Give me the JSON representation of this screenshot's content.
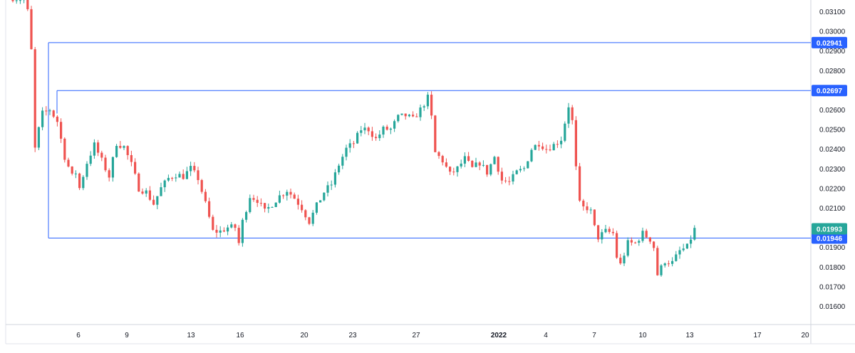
{
  "chart_data": {
    "type": "candlestick",
    "title": "",
    "xlabel": "",
    "ylabel": "",
    "ylim": [
      0.0153,
      0.0318
    ],
    "y_ticks": [
      "0.03100",
      "0.03000",
      "0.02900",
      "0.02800",
      "0.02600",
      "0.02500",
      "0.02400",
      "0.02300",
      "0.02200",
      "0.02100",
      "0.01900",
      "0.01800",
      "0.01700",
      "0.01600"
    ],
    "x_ticks": [
      "6",
      "9",
      "13",
      "16",
      "20",
      "23",
      "27",
      "2022",
      "4",
      "7",
      "10",
      "13",
      "17",
      "20"
    ],
    "grid": false,
    "colors": {
      "up": "#26a69a",
      "down": "#ef5350",
      "level_line": "#2962ff",
      "level_label_bg": "#2962ff",
      "last_price_bg": "#26a69a"
    },
    "horizontal_levels": [
      {
        "value": 0.02941,
        "label": "0.02941"
      },
      {
        "value": 0.02697,
        "label": "0.02697"
      },
      {
        "value": 0.01946,
        "label": "0.01946"
      }
    ],
    "last_price": {
      "value": 0.01993,
      "label": "0.01993"
    },
    "path": [
      [
        0,
        0.0317
      ],
      [
        3,
        0.0316
      ],
      [
        4,
        0.031
      ],
      [
        5,
        0.029
      ],
      [
        6,
        0.024
      ],
      [
        7,
        0.025
      ],
      [
        8,
        0.0258
      ],
      [
        10,
        0.026
      ],
      [
        12,
        0.0254
      ],
      [
        14,
        0.0236
      ],
      [
        16,
        0.0226
      ],
      [
        17,
        0.0228
      ],
      [
        18,
        0.022
      ],
      [
        20,
        0.0233
      ],
      [
        22,
        0.0242
      ],
      [
        24,
        0.0234
      ],
      [
        26,
        0.0226
      ],
      [
        28,
        0.0243
      ],
      [
        30,
        0.0241
      ],
      [
        32,
        0.0232
      ],
      [
        34,
        0.022
      ],
      [
        36,
        0.0218
      ],
      [
        38,
        0.0212
      ],
      [
        40,
        0.022
      ],
      [
        42,
        0.0225
      ],
      [
        44,
        0.0227
      ],
      [
        46,
        0.0226
      ],
      [
        48,
        0.023
      ],
      [
        50,
        0.0225
      ],
      [
        52,
        0.0212
      ],
      [
        54,
        0.0198
      ],
      [
        56,
        0.0198
      ],
      [
        58,
        0.02
      ],
      [
        60,
        0.02
      ],
      [
        61,
        0.0192
      ],
      [
        62,
        0.0203
      ],
      [
        64,
        0.0216
      ],
      [
        66,
        0.0214
      ],
      [
        68,
        0.0208
      ],
      [
        70,
        0.0212
      ],
      [
        72,
        0.0216
      ],
      [
        74,
        0.0219
      ],
      [
        76,
        0.0215
      ],
      [
        78,
        0.021
      ],
      [
        80,
        0.0203
      ],
      [
        82,
        0.0211
      ],
      [
        84,
        0.0218
      ],
      [
        86,
        0.0222
      ],
      [
        88,
        0.0232
      ],
      [
        90,
        0.024
      ],
      [
        92,
        0.0243
      ],
      [
        94,
        0.025
      ],
      [
        96,
        0.025
      ],
      [
        98,
        0.0245
      ],
      [
        100,
        0.025
      ],
      [
        102,
        0.025
      ],
      [
        104,
        0.0256
      ],
      [
        106,
        0.0257
      ],
      [
        108,
        0.0255
      ],
      [
        110,
        0.026
      ],
      [
        112,
        0.0266
      ],
      [
        113,
        0.0256
      ],
      [
        114,
        0.0238
      ],
      [
        116,
        0.0234
      ],
      [
        118,
        0.0227
      ],
      [
        120,
        0.023
      ],
      [
        122,
        0.0235
      ],
      [
        124,
        0.023
      ],
      [
        126,
        0.0233
      ],
      [
        128,
        0.0228
      ],
      [
        130,
        0.0236
      ],
      [
        132,
        0.0224
      ],
      [
        134,
        0.0223
      ],
      [
        136,
        0.0228
      ],
      [
        138,
        0.023
      ],
      [
        140,
        0.024
      ],
      [
        142,
        0.0243
      ],
      [
        144,
        0.024
      ],
      [
        146,
        0.0242
      ],
      [
        148,
        0.0245
      ],
      [
        150,
        0.0262
      ],
      [
        151,
        0.0254
      ],
      [
        152,
        0.023
      ],
      [
        153,
        0.0212
      ],
      [
        154,
        0.021
      ],
      [
        155,
        0.021
      ],
      [
        156,
        0.0208
      ],
      [
        157,
        0.02
      ],
      [
        158,
        0.0195
      ],
      [
        160,
        0.0198
      ],
      [
        162,
        0.0197
      ],
      [
        163,
        0.0185
      ],
      [
        164,
        0.0181
      ],
      [
        166,
        0.0192
      ],
      [
        168,
        0.0192
      ],
      [
        170,
        0.0197
      ],
      [
        172,
        0.0194
      ],
      [
        173,
        0.019
      ],
      [
        174,
        0.0176
      ],
      [
        176,
        0.0183
      ],
      [
        178,
        0.0182
      ],
      [
        180,
        0.0188
      ],
      [
        182,
        0.019
      ],
      [
        184,
        0.0199
      ]
    ]
  }
}
